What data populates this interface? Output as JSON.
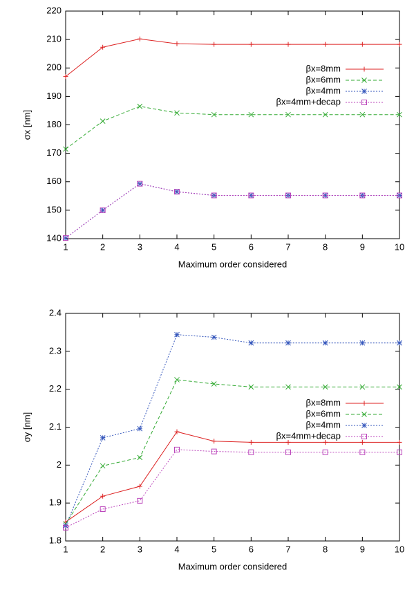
{
  "chart_data": [
    {
      "type": "line",
      "xlabel": "Maximum order considered",
      "ylabel": "σx [nm]",
      "x": [
        1,
        2,
        3,
        4,
        5,
        6,
        7,
        8,
        9,
        10
      ],
      "xlim": [
        1,
        10
      ],
      "xticks": [
        1,
        2,
        3,
        4,
        5,
        6,
        7,
        8,
        9,
        10
      ],
      "ylim": [
        140,
        220
      ],
      "yticks": [
        140,
        150,
        160,
        170,
        180,
        190,
        200,
        210,
        220
      ],
      "legend_position": "upper right",
      "series": [
        {
          "name": "βx=8mm",
          "color": "#dd2222",
          "style": "solid",
          "marker": "+",
          "values": [
            197,
            207.3,
            210.2,
            208.5,
            208.3,
            208.3,
            208.3,
            208.3,
            208.3,
            208.3
          ]
        },
        {
          "name": "βx=6mm",
          "color": "#33aa33",
          "style": "dashed",
          "marker": "x",
          "values": [
            171.5,
            181.3,
            186.5,
            184.2,
            183.6,
            183.6,
            183.6,
            183.6,
            183.6,
            183.6
          ]
        },
        {
          "name": "βx=4mm",
          "color": "#3355bb",
          "style": "dotted",
          "marker": "*",
          "values": [
            140.2,
            150,
            159.3,
            156.5,
            155.2,
            155.2,
            155.2,
            155.2,
            155.2,
            155.2
          ]
        },
        {
          "name": "βx=4mm+decap",
          "color": "#bb44bb",
          "style": "dotted",
          "marker": "square",
          "values": [
            140.2,
            150,
            159.3,
            156.5,
            155.2,
            155.2,
            155.2,
            155.2,
            155.2,
            155.2
          ]
        }
      ]
    },
    {
      "type": "line",
      "xlabel": "Maximum order considered",
      "ylabel": "σy [nm]",
      "x": [
        1,
        2,
        3,
        4,
        5,
        6,
        7,
        8,
        9,
        10
      ],
      "xlim": [
        1,
        10
      ],
      "xticks": [
        1,
        2,
        3,
        4,
        5,
        6,
        7,
        8,
        9,
        10
      ],
      "ylim": [
        1.8,
        2.4
      ],
      "yticks": [
        1.8,
        1.9,
        2,
        2.1,
        2.2,
        2.3,
        2.4
      ],
      "legend_position": "center right",
      "series": [
        {
          "name": "βx=8mm",
          "color": "#dd2222",
          "style": "solid",
          "marker": "+",
          "values": [
            1.85,
            1.918,
            1.944,
            2.088,
            2.063,
            2.06,
            2.06,
            2.06,
            2.06,
            2.06
          ]
        },
        {
          "name": "βx=6mm",
          "color": "#33aa33",
          "style": "dashed",
          "marker": "x",
          "values": [
            1.845,
            1.998,
            2.02,
            2.225,
            2.214,
            2.206,
            2.206,
            2.206,
            2.206,
            2.206
          ]
        },
        {
          "name": "βx=4mm",
          "color": "#3355bb",
          "style": "dotted",
          "marker": "*",
          "values": [
            1.84,
            2.072,
            2.096,
            2.344,
            2.337,
            2.322,
            2.322,
            2.322,
            2.322,
            2.322
          ]
        },
        {
          "name": "βx=4mm+decap",
          "color": "#bb44bb",
          "style": "dotted",
          "marker": "square",
          "values": [
            1.835,
            1.884,
            1.906,
            2.041,
            2.036,
            2.034,
            2.034,
            2.034,
            2.034,
            2.034
          ]
        }
      ]
    }
  ]
}
